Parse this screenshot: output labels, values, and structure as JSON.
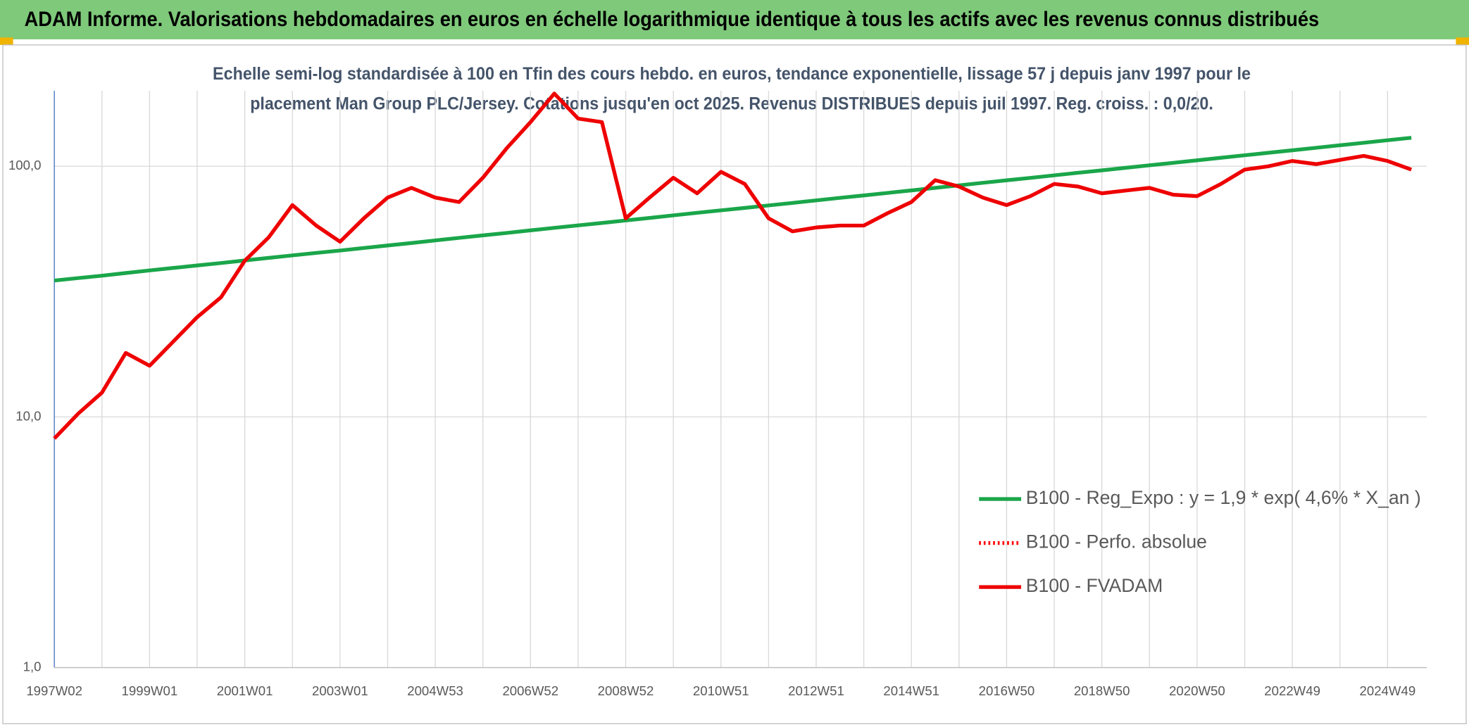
{
  "chart_data": {
    "type": "line",
    "title": "ADAM Informe. Valorisations hebdomadaires en euros en échelle logarithmique identique à tous les actifs avec les revenus connus distribués",
    "subtitle": [
      "Echelle semi-log standardisée à 100 en Tfin des cours hebdo. en euros, tendance exponentielle, lissage 57 j depuis janv 1997 pour le",
      "placement Man Group PLC/Jersey. Cotations jusqu'en oct 2025. Revenus DISTRIBUES depuis juil 1997. Reg. croiss. : 0,0/20."
    ],
    "log_scale": true,
    "grid": true,
    "legend_position": "lower right",
    "ylim": [
      1,
      200
    ],
    "yticks": [
      {
        "value": 1,
        "label": "1,0"
      },
      {
        "value": 10,
        "label": "10,0"
      },
      {
        "value": 100,
        "label": "100,0"
      }
    ],
    "categories": [
      "1997W02",
      null,
      null,
      null,
      "1999W01",
      null,
      null,
      null,
      "2001W01",
      null,
      null,
      null,
      "2003W01",
      null,
      null,
      null,
      "2004W53",
      null,
      null,
      null,
      "2006W52",
      null,
      null,
      null,
      "2008W52",
      null,
      null,
      null,
      "2010W51",
      null,
      null,
      null,
      "2012W51",
      null,
      null,
      null,
      "2014W51",
      null,
      null,
      null,
      "2016W50",
      null,
      null,
      null,
      "2018W50",
      null,
      null,
      null,
      "2020W50",
      null,
      null,
      null,
      "2022W49",
      null,
      null,
      null,
      "2024W49",
      null
    ],
    "series": [
      {
        "name": "B100 - Reg_Expo : y = 1,9 * exp( 4,6% *  X_an )",
        "color": "#1aa64a",
        "style": "solid",
        "values": [
          35,
          35.8,
          36.6,
          37.5,
          38.4,
          39.3,
          40.2,
          41.1,
          42.1,
          43.1,
          44.1,
          45.1,
          46.1,
          47.2,
          48.3,
          49.4,
          50.6,
          51.8,
          53.0,
          54.2,
          55.5,
          56.8,
          58.1,
          59.4,
          60.8,
          62.2,
          63.7,
          65.2,
          66.7,
          68.2,
          69.8,
          71.4,
          73.1,
          74.8,
          76.5,
          78.3,
          80.1,
          82.0,
          83.9,
          85.9,
          87.9,
          89.9,
          92.0,
          94.2,
          96.3,
          98.6,
          100.9,
          103.2,
          105.6,
          108.1,
          110.6,
          113.2,
          115.8,
          118.5,
          121.3,
          124.1,
          127.0,
          129.9
        ]
      },
      {
        "name": "B100 - Perfo. absolue",
        "color": "#ff0000",
        "style": "dotted",
        "values": [
          null,
          null,
          null,
          null,
          null,
          null,
          null,
          null,
          null,
          null,
          null,
          null,
          null,
          null,
          null,
          null,
          null,
          null,
          null,
          null,
          null,
          null,
          null,
          null,
          null,
          null,
          null,
          null,
          null,
          null,
          null,
          null,
          null,
          null,
          null,
          null,
          null,
          null,
          null,
          null,
          null,
          null,
          null,
          null,
          null,
          null,
          null,
          null,
          null,
          null,
          null,
          null,
          null,
          null,
          null,
          null,
          null,
          null
        ]
      },
      {
        "name": "B100 - FVADAM",
        "color": "#ee0000",
        "style": "solid",
        "values": [
          8.2,
          10.3,
          12.5,
          18,
          16,
          20,
          25,
          30,
          42,
          52,
          70,
          58,
          50,
          62,
          75,
          82,
          75,
          72,
          90,
          118,
          150,
          195,
          155,
          150,
          62,
          75,
          90,
          78,
          95,
          85,
          62,
          55,
          57,
          58,
          58,
          65,
          72,
          88,
          83,
          75,
          70,
          76,
          85,
          83,
          78,
          80,
          82,
          77,
          76,
          85,
          97,
          100,
          105,
          102,
          106,
          110,
          105,
          97
        ]
      }
    ]
  }
}
